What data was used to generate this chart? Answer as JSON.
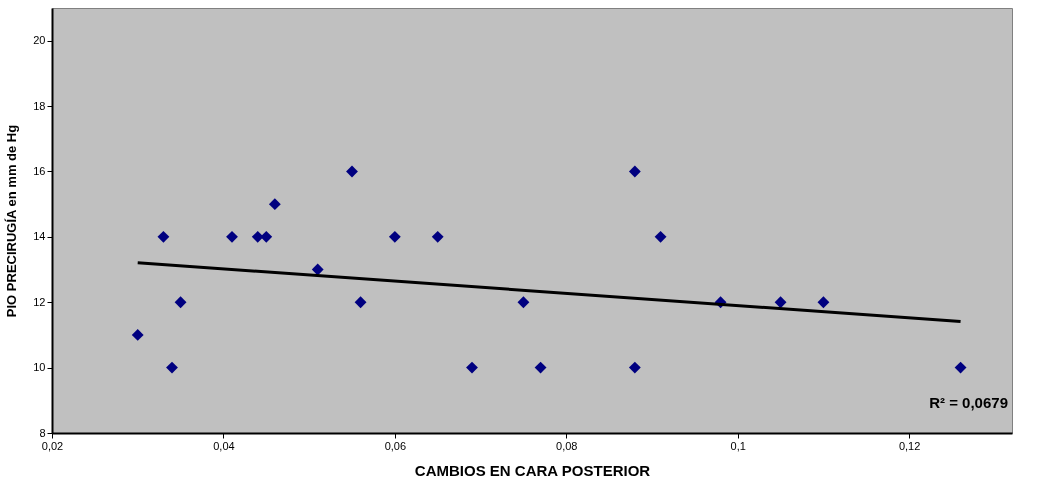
{
  "chart_data": {
    "type": "scatter",
    "xlabel": "CAMBIOS EN CARA POSTERIOR",
    "ylabel": "PIO PRECIRUGÍA en mm de Hg",
    "xlim": [
      0.02,
      0.132
    ],
    "ylim": [
      8,
      21
    ],
    "xticks": [
      {
        "value": 0.02,
        "label": "0,02"
      },
      {
        "value": 0.04,
        "label": "0,04"
      },
      {
        "value": 0.06,
        "label": "0,06"
      },
      {
        "value": 0.08,
        "label": "0,08"
      },
      {
        "value": 0.1,
        "label": "0,1"
      },
      {
        "value": 0.12,
        "label": "0,12"
      }
    ],
    "yticks": [
      8,
      10,
      12,
      14,
      16,
      18,
      20
    ],
    "grid": false,
    "series": [
      {
        "marker": "diamond",
        "color": "#000080",
        "x": [
          0.03,
          0.033,
          0.034,
          0.035,
          0.041,
          0.044,
          0.045,
          0.046,
          0.051,
          0.055,
          0.056,
          0.06,
          0.065,
          0.069,
          0.075,
          0.077,
          0.088,
          0.088,
          0.091,
          0.098,
          0.105,
          0.11,
          0.126
        ],
        "values": [
          11,
          14,
          10,
          12,
          14,
          14,
          14,
          15,
          13,
          16,
          12,
          14,
          14,
          10,
          12,
          10,
          16,
          10,
          14,
          12,
          12,
          12,
          10
        ]
      },
      {
        "type": "line",
        "marker": "none",
        "line_style": "solid",
        "color": "#000000",
        "x": [
          0.03,
          0.126
        ],
        "values": [
          13.21,
          11.41
        ]
      }
    ],
    "annotations": [
      "R² = 0,0679"
    ]
  }
}
